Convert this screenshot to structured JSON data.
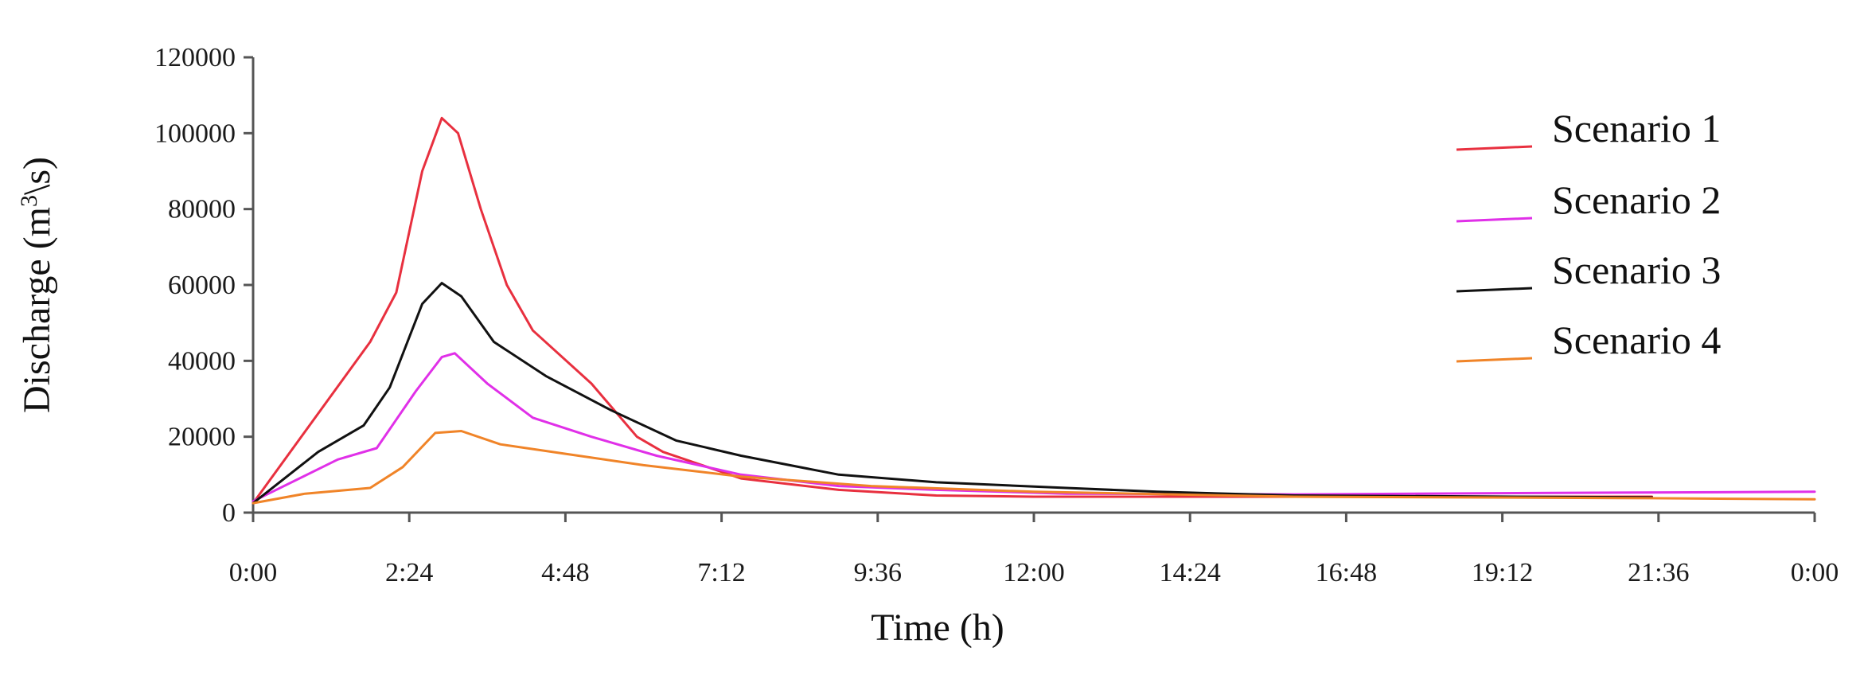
{
  "chart_data": {
    "type": "line",
    "title": "",
    "xlabel": "Time (h)",
    "ylabel_parts": {
      "before": "Discharge (m",
      "sup": "3",
      "after": "\\s)"
    },
    "ylabel": "Discharge (m3\\s)",
    "x_tick_labels": [
      "0:00",
      "2:24",
      "4:48",
      "7:12",
      "9:36",
      "12:00",
      "14:24",
      "16:48",
      "19:12",
      "21:36",
      "0:00"
    ],
    "x_unit": "hours",
    "xlim": [
      0,
      24
    ],
    "y_tick_labels": [
      "0",
      "20000",
      "40000",
      "60000",
      "80000",
      "100000",
      "120000"
    ],
    "ylim": [
      0,
      120000
    ],
    "grid": false,
    "legend_position": "top-right",
    "series": [
      {
        "name": "Scenario 1",
        "color": "#e8303f",
        "points": [
          [
            0,
            2500
          ],
          [
            1.8,
            45000
          ],
          [
            2.2,
            58000
          ],
          [
            2.6,
            90000
          ],
          [
            2.9,
            104000
          ],
          [
            3.15,
            100000
          ],
          [
            3.5,
            80000
          ],
          [
            3.9,
            60000
          ],
          [
            4.3,
            48000
          ],
          [
            5.2,
            34000
          ],
          [
            5.9,
            20000
          ],
          [
            6.3,
            16000
          ],
          [
            7.5,
            9000
          ],
          [
            9.0,
            6000
          ],
          [
            10.5,
            4500
          ],
          [
            12,
            4200
          ],
          [
            16,
            4200
          ],
          [
            21.5,
            4200
          ]
        ]
      },
      {
        "name": "Scenario 2",
        "color": "#e030e8",
        "points": [
          [
            0,
            3000
          ],
          [
            1.3,
            14000
          ],
          [
            1.9,
            17000
          ],
          [
            2.5,
            32000
          ],
          [
            2.9,
            41000
          ],
          [
            3.1,
            42000
          ],
          [
            3.6,
            34000
          ],
          [
            4.3,
            25000
          ],
          [
            5.2,
            20000
          ],
          [
            6.2,
            15000
          ],
          [
            7.5,
            10000
          ],
          [
            9.0,
            7000
          ],
          [
            10.5,
            6000
          ],
          [
            12.5,
            5000
          ],
          [
            16,
            4800
          ],
          [
            20,
            5200
          ],
          [
            24,
            5500
          ]
        ]
      },
      {
        "name": "Scenario 3",
        "color": "#111111",
        "points": [
          [
            0,
            2500
          ],
          [
            1.0,
            16000
          ],
          [
            1.7,
            23000
          ],
          [
            2.1,
            33000
          ],
          [
            2.6,
            55000
          ],
          [
            2.9,
            60500
          ],
          [
            3.2,
            57000
          ],
          [
            3.7,
            45000
          ],
          [
            4.5,
            36000
          ],
          [
            5.5,
            27000
          ],
          [
            6.5,
            19000
          ],
          [
            7.5,
            15000
          ],
          [
            9.0,
            10000
          ],
          [
            10.5,
            8000
          ],
          [
            12.5,
            6500
          ],
          [
            13.9,
            5500
          ],
          [
            16,
            4500
          ],
          [
            21.5,
            4000
          ]
        ]
      },
      {
        "name": "Scenario 4",
        "color": "#f08428",
        "points": [
          [
            0,
            2500
          ],
          [
            0.8,
            5000
          ],
          [
            1.8,
            6500
          ],
          [
            2.3,
            12000
          ],
          [
            2.8,
            21000
          ],
          [
            3.2,
            21500
          ],
          [
            3.8,
            18000
          ],
          [
            4.8,
            15500
          ],
          [
            6.0,
            12500
          ],
          [
            7.5,
            9500
          ],
          [
            9.5,
            7000
          ],
          [
            12,
            5500
          ],
          [
            16,
            4200
          ],
          [
            21.5,
            3800
          ],
          [
            24,
            3500
          ]
        ]
      }
    ]
  }
}
